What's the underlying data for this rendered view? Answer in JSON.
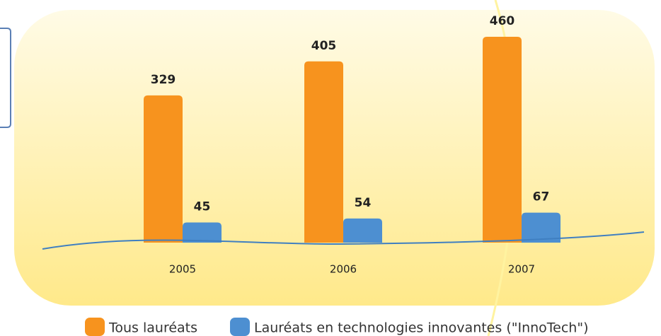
{
  "chart_data": {
    "type": "bar",
    "categories": [
      "2005",
      "2006",
      "2007"
    ],
    "series": [
      {
        "name": "Tous lauréats",
        "color": "#f7931e",
        "values": [
          329,
          405,
          460
        ]
      },
      {
        "name": "Lauréats en technologies innovantes (\"InnoTech\")",
        "color": "#4d8fd1",
        "values": [
          45,
          54,
          67
        ]
      }
    ]
  }
}
